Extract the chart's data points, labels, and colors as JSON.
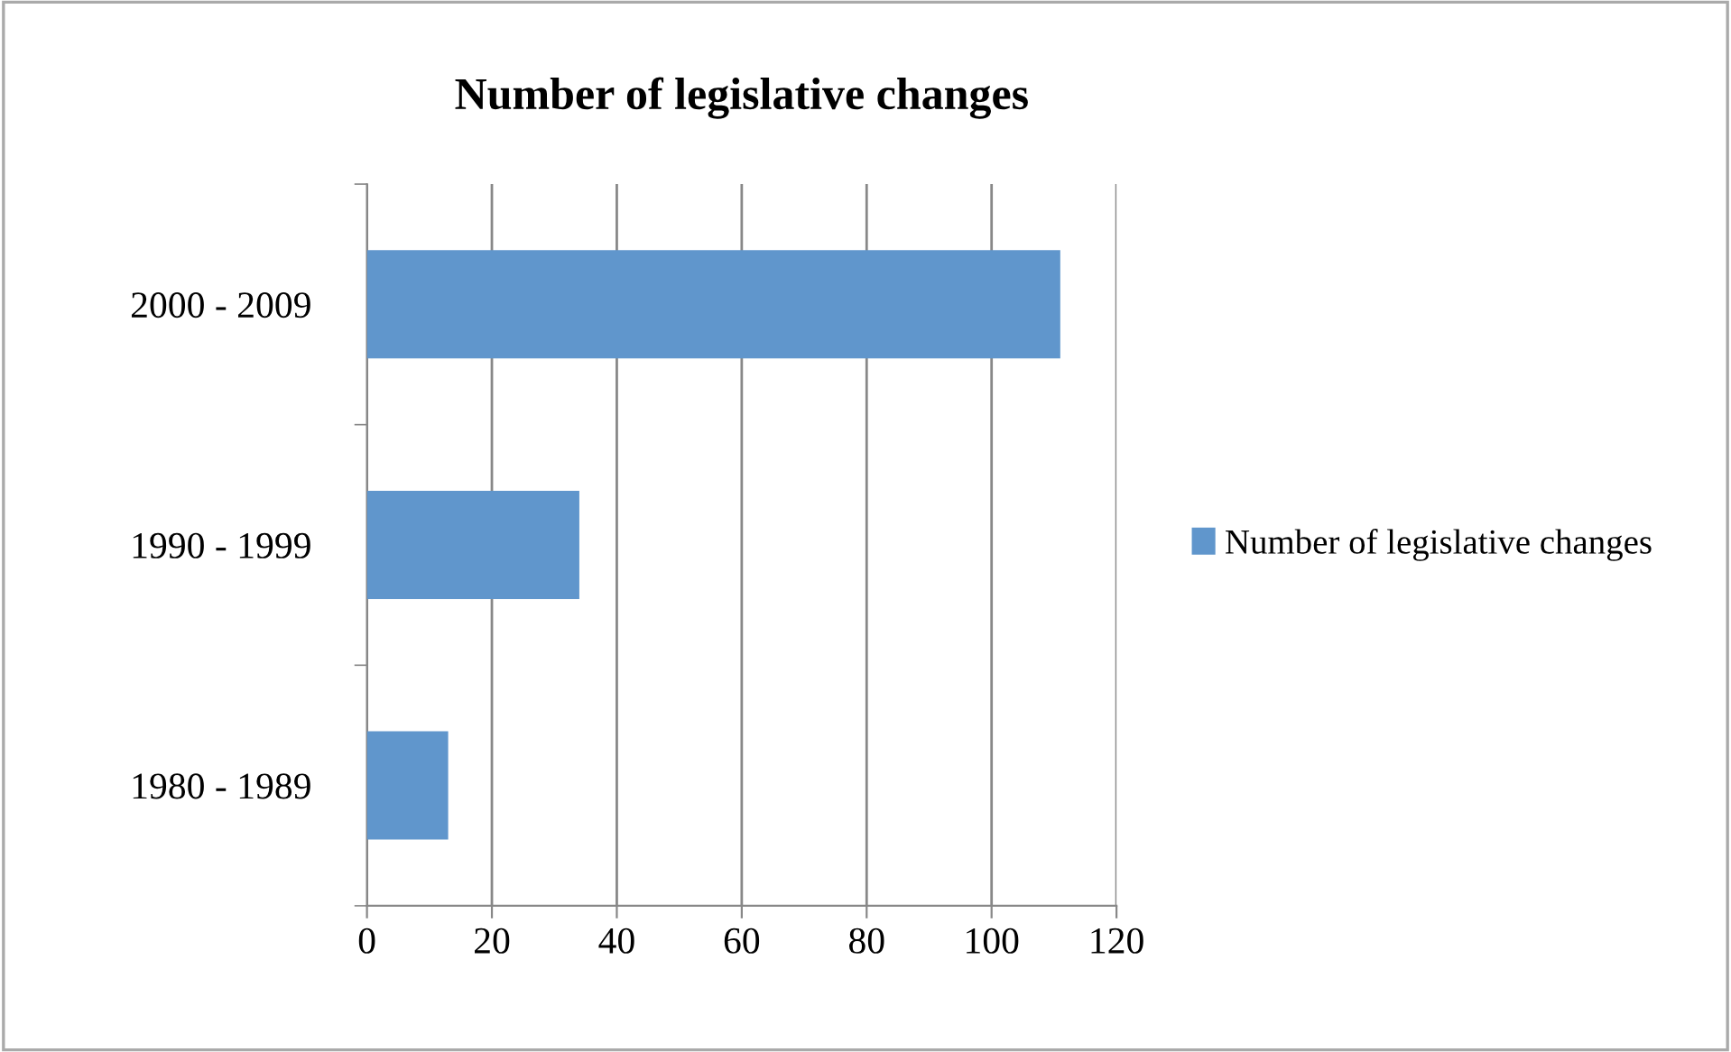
{
  "chart_data": {
    "type": "bar",
    "orientation": "horizontal",
    "title": "Number of legislative changes",
    "categories": [
      "2000 - 2009",
      "1990 - 1999",
      "1980 - 1989"
    ],
    "series": [
      {
        "name": "Number of legislative changes",
        "color": "#6096cc",
        "values": [
          111,
          34,
          13
        ]
      }
    ],
    "xlim": [
      0,
      120
    ],
    "xticks": [
      0,
      20,
      40,
      60,
      80,
      100,
      120
    ],
    "grid": "x",
    "legend": "right"
  }
}
